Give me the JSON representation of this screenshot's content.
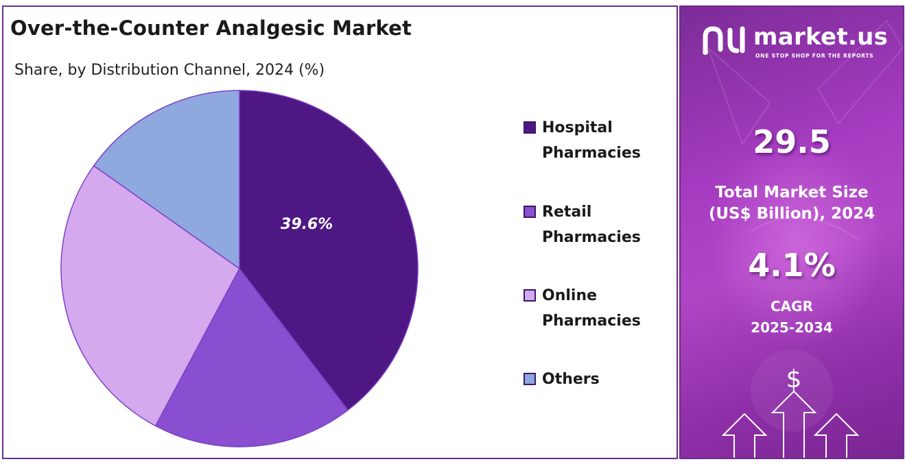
{
  "chart_data": {
    "type": "pie",
    "title": "Over-the-Counter Analgesic Market",
    "subtitle": "Share, by Distribution Channel, 2024 (%)",
    "categories": [
      "Hospital Pharmacies",
      "Retail Pharmacies",
      "Online Pharmacies",
      "Others"
    ],
    "values": [
      39.6,
      18.2,
      27.0,
      15.2
    ],
    "colors": [
      "#4e1783",
      "#8a4fd0",
      "#d4a9ee",
      "#8fa8de"
    ],
    "data_labels": [
      "39.6%",
      "",
      "",
      ""
    ],
    "legend_position": "right"
  },
  "legend": [
    {
      "line1": "Hospital",
      "line2": "Pharmacies",
      "color": "#4e1783"
    },
    {
      "line1": "Retail",
      "line2": "Pharmacies",
      "color": "#8a4fd0"
    },
    {
      "line1": "Online",
      "line2": "Pharmacies",
      "color": "#d4a9ee"
    },
    {
      "line1": "Others",
      "line2": "",
      "color": "#8fa8de"
    }
  ],
  "side_panel": {
    "brand_name": "market.us",
    "brand_tagline": "ONE STOP SHOP FOR THE REPORTS",
    "market_size_value": "29.5",
    "market_size_label_1": "Total Market Size",
    "market_size_label_2": "(US$ Billion), 2024",
    "cagr_value": "4.1%",
    "cagr_label_1": "CAGR",
    "cagr_label_2": "2025-2034",
    "icons": [
      "dollar-icon",
      "growth-arrows-icon"
    ],
    "background_color": "#a53bc0"
  }
}
